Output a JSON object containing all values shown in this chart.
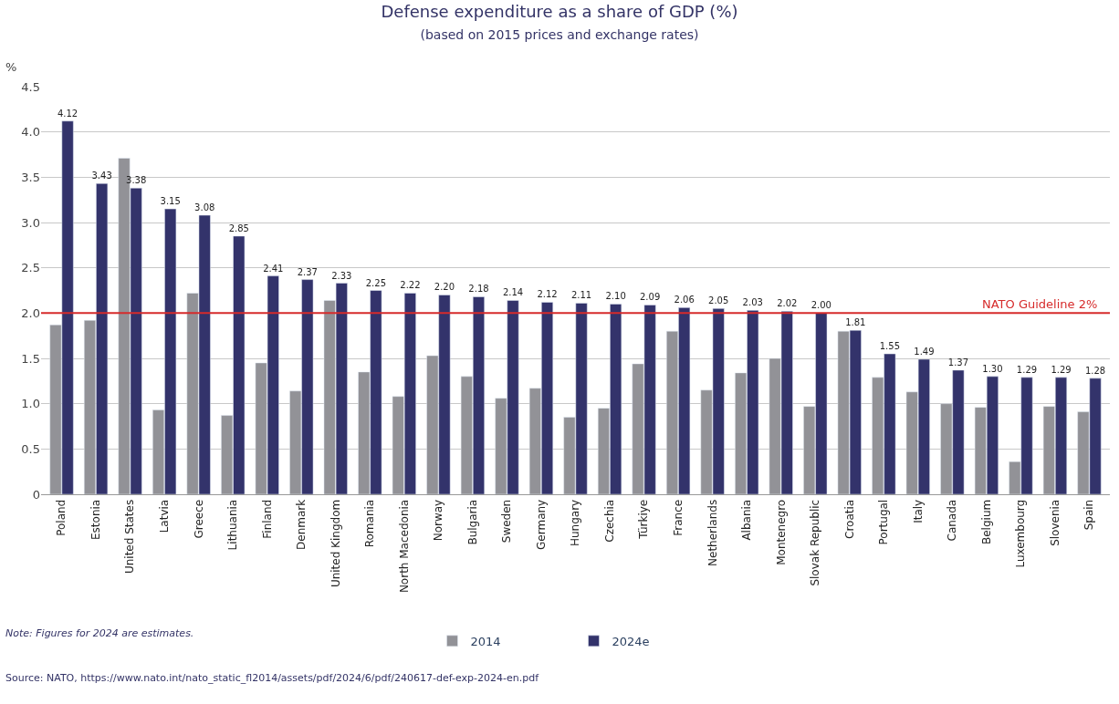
{
  "chart_data": {
    "type": "bar",
    "title": "Defense expenditure as a share of GDP (%)",
    "subtitle": "(based on 2015 prices and exchange rates)",
    "ylabel": "%",
    "categories": [
      "Poland",
      "Estonia",
      "United States",
      "Latvia",
      "Greece",
      "Lithuania",
      "Finland",
      "Denmark",
      "United Kingdom",
      "Romania",
      "North Macedonia",
      "Norway",
      "Bulgaria",
      "Sweden",
      "Germany",
      "Hungary",
      "Czechia",
      "Türkiye",
      "France",
      "Netherlands",
      "Albania",
      "Montenegro",
      "Slovak Republic",
      "Croatia",
      "Portugal",
      "Italy",
      "Canada",
      "Belgium",
      "Luxembourg",
      "Slovenia",
      "Spain"
    ],
    "series": [
      {
        "name": "2014",
        "color": "#929297",
        "values": [
          1.87,
          1.92,
          3.71,
          0.93,
          2.22,
          0.87,
          1.45,
          1.14,
          2.14,
          1.35,
          1.08,
          1.53,
          1.3,
          1.06,
          1.17,
          0.85,
          0.95,
          1.44,
          1.8,
          1.15,
          1.34,
          1.5,
          0.97,
          1.8,
          1.29,
          1.13,
          1.0,
          0.96,
          0.36,
          0.97,
          0.91
        ]
      },
      {
        "name": "2024e",
        "color": "#33336b",
        "values": [
          4.12,
          3.43,
          3.38,
          3.15,
          3.08,
          2.85,
          2.41,
          2.37,
          2.33,
          2.25,
          2.22,
          2.2,
          2.18,
          2.14,
          2.12,
          2.11,
          2.1,
          2.09,
          2.06,
          2.05,
          2.03,
          2.02,
          2.0,
          1.81,
          1.55,
          1.49,
          1.37,
          1.3,
          1.29,
          1.29,
          1.28
        ],
        "value_labels": [
          "4.12",
          "3.43",
          "3.38",
          "3.15",
          "3.08",
          "2.85",
          "2.41",
          "2.37",
          "2.33",
          "2.25",
          "2.22",
          "2.20",
          "2.18",
          "2.14",
          "2.12",
          "2.11",
          "2.10",
          "2.09",
          "2.06",
          "2.05",
          "2.03",
          "2.02",
          "2.00",
          "1.81",
          "1.55",
          "1.49",
          "1.37",
          "1.30",
          "1.29",
          "1.29",
          "1.28"
        ]
      }
    ],
    "ylim": [
      0,
      4.5
    ],
    "yticks": [
      {
        "value": 0,
        "label": "0"
      },
      {
        "value": 0.5,
        "label": "0.5"
      },
      {
        "value": 1,
        "label": "1.0"
      },
      {
        "value": 1.5,
        "label": "1.5"
      },
      {
        "value": 2,
        "label": "2.0"
      },
      {
        "value": 2.5,
        "label": "2.5"
      },
      {
        "value": 3,
        "label": "3.0"
      },
      {
        "value": 3.5,
        "label": "3.5"
      },
      {
        "value": 4,
        "label": "4.0"
      },
      {
        "value": 4.5,
        "label": "4.5"
      }
    ],
    "ref_lines": [
      {
        "axis": "y",
        "value": 2,
        "label": "NATO Guideline 2%",
        "color": "#d62b2b"
      }
    ],
    "grid": "y",
    "legend": "bottom",
    "annotations": [
      "Note: Figures for 2024 are estimates.",
      "Source: NATO, https://www.nato.int/nato_static_fl2014/assets/pdf/2024/6/pdf/240617-def-exp-2024-en.pdf"
    ]
  }
}
